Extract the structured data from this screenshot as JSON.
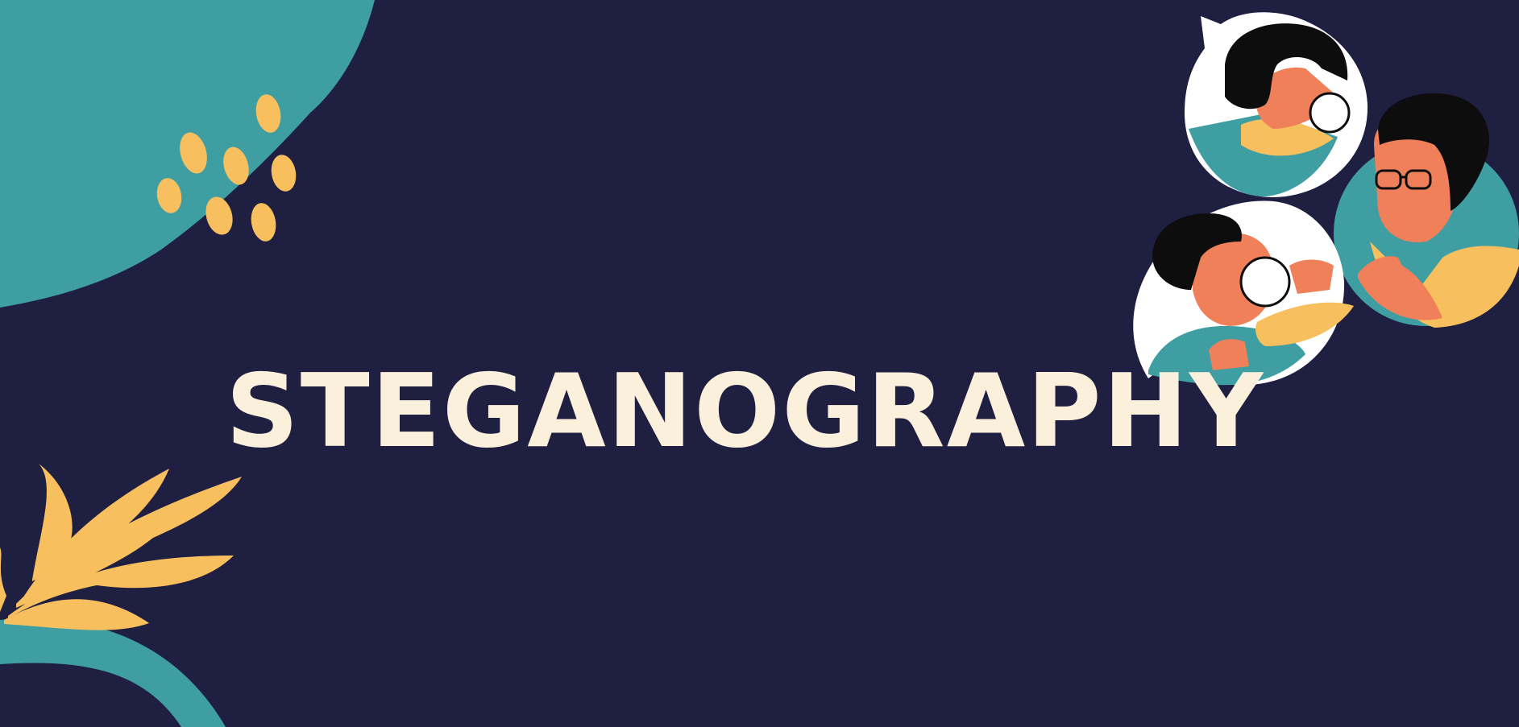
{
  "slide": {
    "title": "STEGANOGRAPHY"
  },
  "colors": {
    "background": "#1f1f42",
    "teal": "#3e9ea2",
    "yellow": "#f8bf5e",
    "cream": "#fbf0dc",
    "skin": "#ef805a",
    "hair": "#0d0d0d"
  },
  "illustration": {
    "icons": [
      "blob-shape",
      "dots-cluster",
      "leaf-branch",
      "investigator-woman-icon",
      "investigator-boy-icon",
      "man-with-glasses-icon",
      "magnifying-glass-icon"
    ]
  }
}
